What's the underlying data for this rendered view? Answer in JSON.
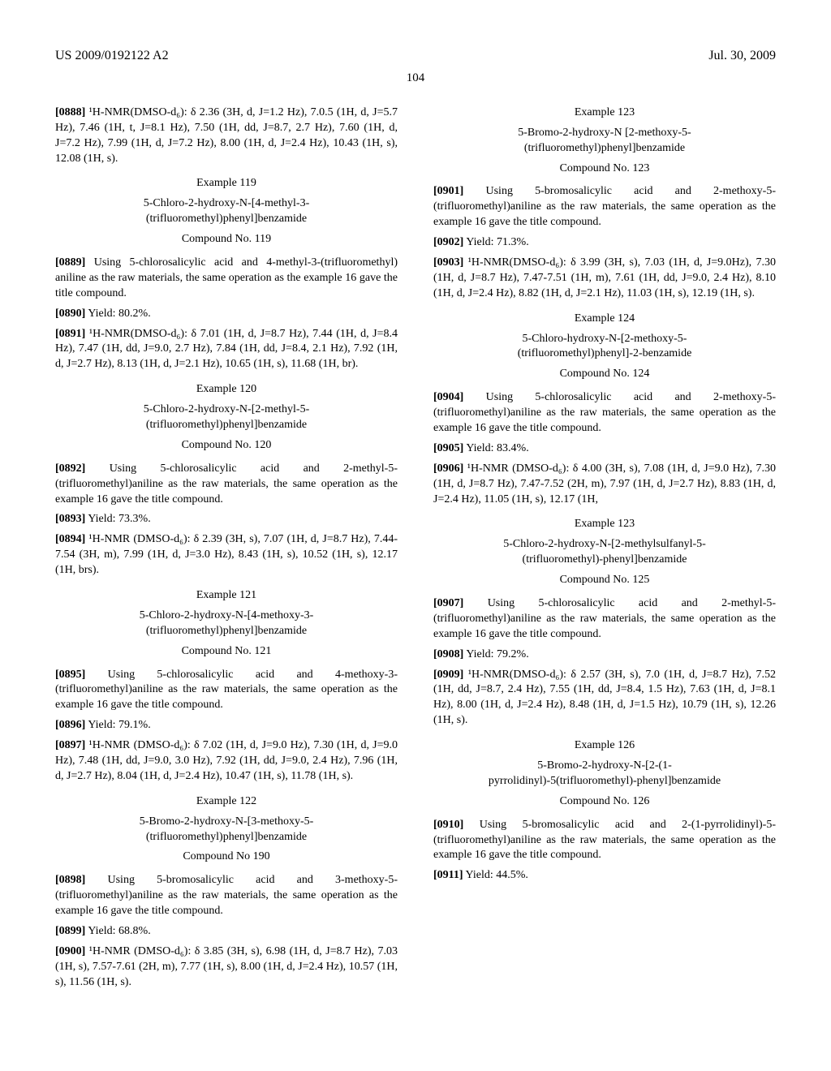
{
  "header": {
    "pub": "US 2009/0192122 A2",
    "date": "Jul. 30, 2009"
  },
  "pagenum": "104",
  "p0888": {
    "num": "[0888]",
    "text": "¹H-NMR(DMSO-d₆): δ 2.36 (3H, d, J=1.2 Hz), 7.0.5 (1H, d, J=5.7 Hz), 7.46 (1H, t, J=8.1 Hz), 7.50 (1H, dd, J=8.7, 2.7 Hz), 7.60 (1H, d, J=7.2 Hz), 7.99 (1H, d, J=7.2 Hz), 8.00 (1H, d, J=2.4 Hz), 10.43 (1H, s), 12.08 (1H, s)."
  },
  "ex119": {
    "title": "Example 119",
    "name": "5-Chloro-2-hydroxy-N-[4-methyl-3-(trifluoromethyl)phenyl]benzamide",
    "comp": "Compound No. 119"
  },
  "p0889": {
    "num": "[0889]",
    "text": "Using 5-chlorosalicylic acid and 4-methyl-3-(trifluoromethyl) aniline as the raw materials, the same operation as the example 16 gave the title compound."
  },
  "p0890": {
    "num": "[0890]",
    "text": "Yield: 80.2%."
  },
  "p0891": {
    "num": "[0891]",
    "text": "¹H-NMR(DMSO-d₆): δ 7.01 (1H, d, J=8.7 Hz), 7.44 (1H, d, J=8.4 Hz), 7.47 (1H, dd, J=9.0, 2.7 Hz), 7.84 (1H, dd, J=8.4, 2.1 Hz), 7.92 (1H, d, J=2.7 Hz), 8.13 (1H, d, J=2.1 Hz), 10.65 (1H, s), 11.68 (1H, br)."
  },
  "ex120": {
    "title": "Example 120",
    "name": "5-Chloro-2-hydroxy-N-[2-methyl-5-(trifluoromethyl)phenyl]benzamide",
    "comp": "Compound No. 120"
  },
  "p0892": {
    "num": "[0892]",
    "text": "Using 5-chlorosalicylic acid and 2-methyl-5-(trifluoromethyl)aniline as the raw materials, the same operation as the example 16 gave the title compound."
  },
  "p0893": {
    "num": "[0893]",
    "text": "Yield: 73.3%."
  },
  "p0894": {
    "num": "[0894]",
    "text": "¹H-NMR (DMSO-d₆): δ 2.39 (3H, s), 7.07 (1H, d, J=8.7 Hz), 7.44-7.54 (3H, m), 7.99 (1H, d, J=3.0 Hz), 8.43 (1H, s), 10.52 (1H, s), 12.17 (1H, brs)."
  },
  "ex121": {
    "title": "Example 121",
    "name": "5-Chloro-2-hydroxy-N-[4-methoxy-3-(trifluoromethyl)phenyl]benzamide",
    "comp": "Compound No. 121"
  },
  "p0895": {
    "num": "[0895]",
    "text": "Using 5-chlorosalicylic acid and 4-methoxy-3-(trifluoromethyl)aniline as the raw materials, the same operation as the example 16 gave the title compound."
  },
  "p0896": {
    "num": "[0896]",
    "text": "Yield: 79.1%."
  },
  "p0897": {
    "num": "[0897]",
    "text": "¹H-NMR (DMSO-d₆): δ 7.02 (1H, d, J=9.0 Hz), 7.30 (1H, d, J=9.0 Hz), 7.48 (1H, dd, J=9.0, 3.0 Hz), 7.92 (1H, dd, J=9.0, 2.4 Hz), 7.96 (1H, d, J=2.7 Hz), 8.04 (1H, d, J=2.4 Hz), 10.47 (1H, s), 11.78 (1H, s)."
  },
  "ex122": {
    "title": "Example 122",
    "name": "5-Bromo-2-hydroxy-N-[3-methoxy-5-(trifluoromethyl)phenyl]benzamide",
    "comp": "Compound No 190"
  },
  "p0898": {
    "num": "[0898]",
    "text": "Using 5-bromosalicylic acid and 3-methoxy-5-(trifluoromethyl)aniline as the raw materials, the same operation as the example 16 gave the title compound."
  },
  "p0899": {
    "num": "[0899]",
    "text": "Yield: 68.8%."
  },
  "p0900": {
    "num": "[0900]",
    "text": "¹H-NMR (DMSO-d₆): δ 3.85 (3H, s), 6.98 (1H, d, J=8.7 Hz), 7.03 (1H, s), 7.57-7.61 (2H, m), 7.77 (1H, s), 8.00 (1H, d, J=2.4 Hz), 10.57 (1H, s), 11.56 (1H, s)."
  },
  "ex123": {
    "title": "Example 123",
    "name": "5-Bromo-2-hydroxy-N [2-methoxy-5-(trifluoromethyl)phenyl]benzamide",
    "comp": "Compound No. 123"
  },
  "p0901": {
    "num": "[0901]",
    "text": "Using 5-bromosalicylic acid and 2-methoxy-5-(trifluoromethyl)aniline as the raw materials, the same operation as the example 16 gave the title compound."
  },
  "p0902": {
    "num": "[0902]",
    "text": "Yield: 71.3%."
  },
  "p0903": {
    "num": "[0903]",
    "text": "¹H-NMR(DMSO-d₆): δ 3.99 (3H, s), 7.03 (1H, d, J=9.0Hz), 7.30 (1H, d, J=8.7 Hz), 7.47-7.51 (1H, m), 7.61 (1H, dd, J=9.0, 2.4 Hz), 8.10 (1H, d, J=2.4 Hz), 8.82 (1H, d, J=2.1 Hz), 11.03 (1H, s), 12.19 (1H, s)."
  },
  "ex124": {
    "title": "Example 124",
    "name": "5-Chloro-hydroxy-N-[2-methoxy-5-(trifluoromethyl)phenyl]-2-benzamide",
    "comp": "Compound No. 124"
  },
  "p0904": {
    "num": "[0904]",
    "text": "Using 5-chlorosalicylic acid and 2-methoxy-5-(trifluoromethyl)aniline as the raw materials, the same operation as the example 16 gave the title compound."
  },
  "p0905": {
    "num": "[0905]",
    "text": "Yield: 83.4%."
  },
  "p0906": {
    "num": "[0906]",
    "text": "¹H-NMR (DMSO-d₆): δ 4.00 (3H, s), 7.08 (1H, d, J=9.0 Hz), 7.30 (1H, d, J=8.7 Hz), 7.47-7.52 (2H, m), 7.97 (1H, d, J=2.7 Hz), 8.83 (1H, d, J=2.4 Hz), 11.05 (1H, s), 12.17 (1H,"
  },
  "ex125": {
    "title": "Example 123",
    "name": "5-Chloro-2-hydroxy-N-[2-methylsulfanyl-5-(trifluoromethyl)-phenyl]benzamide",
    "comp": "Compound No. 125"
  },
  "p0907": {
    "num": "[0907]",
    "text": "Using 5-chlorosalicylic acid and 2-methyl-5-(trifluoromethyl)aniline as the raw materials, the same operation as the example 16 gave the title compound."
  },
  "p0908": {
    "num": "[0908]",
    "text": "Yield: 79.2%."
  },
  "p0909": {
    "num": "[0909]",
    "text": "¹H-NMR(DMSO-d₆): δ 2.57 (3H, s), 7.0 (1H, d, J=8.7 Hz), 7.52 (1H, dd, J=8.7, 2.4 Hz), 7.55 (1H, dd, J=8.4, 1.5 Hz), 7.63 (1H, d, J=8.1 Hz), 8.00 (1H, d, J=2.4 Hz), 8.48 (1H, d, J=1.5 Hz), 10.79 (1H, s), 12.26 (1H, s)."
  },
  "ex126": {
    "title": "Example 126",
    "name": "5-Bromo-2-hydroxy-N-[2-(1-pyrrolidinyl)-5(trifluoromethyl)-phenyl]benzamide",
    "comp": "Compound No. 126"
  },
  "p0910": {
    "num": "[0910]",
    "text": "Using 5-bromosalicylic acid and 2-(1-pyrrolidinyl)-5-(trifluoromethyl)aniline as the raw materials, the same operation as the example 16 gave the title compound."
  },
  "p0911": {
    "num": "[0911]",
    "text": "Yield: 44.5%."
  }
}
